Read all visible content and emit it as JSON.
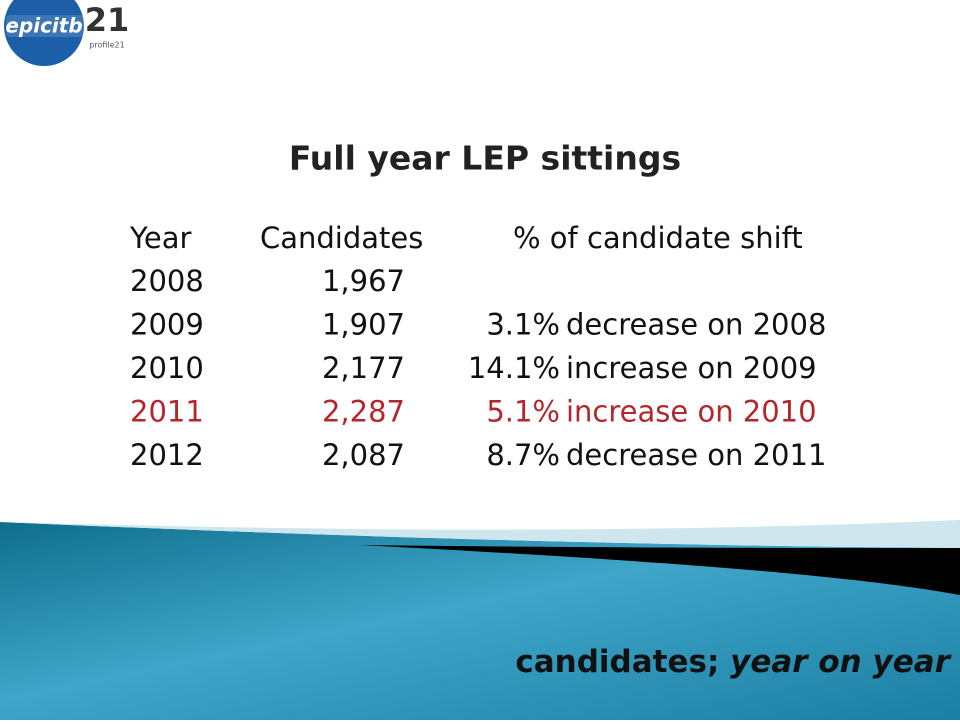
{
  "logos": {
    "left": "epicitb",
    "right_mark": "21",
    "right_caption": "profile21"
  },
  "title": "Full year LEP sittings",
  "table": {
    "header": [
      "Year",
      "Candidates",
      "% of candidate shift"
    ],
    "rows": [
      [
        "2008",
        "1,967",
        "",
        ""
      ],
      [
        "2009",
        "1,907",
        "3.1%",
        "decrease on 2008"
      ],
      [
        "2010",
        "2,177",
        "14.1%",
        "increase on 2009"
      ],
      [
        "2011",
        "2,287",
        "5.1%",
        "increase on 2010"
      ],
      [
        "2012",
        "2,087",
        "8.7%",
        "decrease on 2011"
      ]
    ],
    "highlight_row": 3,
    "highlight_color": "#b3262b"
  },
  "footer": {
    "text": "candidates;",
    "italic": "year on year"
  }
}
